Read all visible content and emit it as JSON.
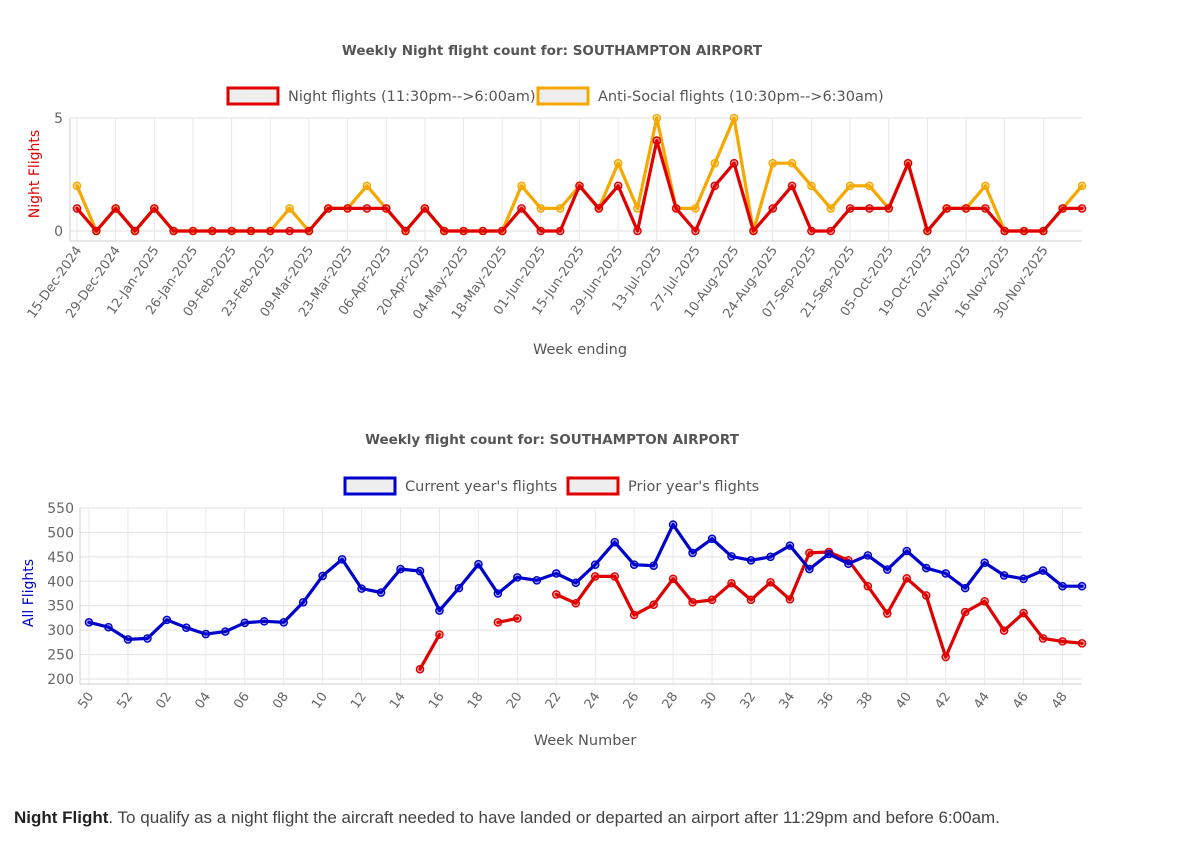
{
  "chart_data": [
    {
      "type": "line",
      "title": "Weekly Night flight count for: SOUTHAMPTON AIRPORT",
      "xlabel": "Week ending",
      "ylabel": "Night Flights",
      "ylim": [
        0,
        5
      ],
      "yticks": [
        0,
        5
      ],
      "grid": true,
      "legend_position": "top",
      "tick_labels": [
        "15-Dec-2024",
        "29-Dec-2024",
        "12-Jan-2025",
        "26-Jan-2025",
        "09-Feb-2025",
        "23-Feb-2025",
        "09-Mar-2025",
        "23-Mar-2025",
        "06-Apr-2025",
        "20-Apr-2025",
        "04-May-2025",
        "18-May-2025",
        "01-Jun-2025",
        "15-Jun-2025",
        "29-Jun-2025",
        "13-Jul-2025",
        "27-Jul-2025",
        "10-Aug-2025",
        "24-Aug-2025",
        "07-Sep-2025",
        "21-Sep-2025",
        "05-Oct-2025",
        "19-Oct-2025",
        "02-Nov-2025",
        "16-Nov-2025",
        "30-Nov-2025"
      ],
      "series": [
        {
          "name": "Night flights (11:30pm-->6:00am)",
          "color": "#e00000",
          "values": [
            1,
            0,
            1,
            0,
            1,
            0,
            0,
            0,
            0,
            0,
            0,
            0,
            0,
            1,
            1,
            1,
            1,
            0,
            1,
            0,
            0,
            0,
            0,
            1,
            0,
            0,
            2,
            1,
            2,
            0,
            4,
            1,
            0,
            2,
            3,
            0,
            1,
            2,
            0,
            0,
            1,
            1,
            1,
            3,
            0,
            1,
            1,
            1,
            0,
            0,
            0,
            1,
            1
          ]
        },
        {
          "name": "Anti-Social flights (10:30pm-->6:30am)",
          "color": "#f5a800",
          "values": [
            2,
            0,
            1,
            0,
            1,
            0,
            0,
            0,
            0,
            0,
            0,
            1,
            0,
            1,
            1,
            2,
            1,
            0,
            1,
            0,
            0,
            0,
            0,
            2,
            1,
            1,
            2,
            1,
            3,
            1,
            5,
            1,
            1,
            3,
            5,
            0,
            3,
            3,
            2,
            1,
            2,
            2,
            1,
            3,
            0,
            1,
            1,
            2,
            0,
            0,
            0,
            1,
            2
          ]
        }
      ]
    },
    {
      "type": "line",
      "title": "Weekly flight count for: SOUTHAMPTON AIRPORT",
      "xlabel": "Week Number",
      "ylabel": "All Flights",
      "ylim": [
        200,
        550
      ],
      "yticks": [
        200,
        250,
        300,
        350,
        400,
        450,
        500,
        550
      ],
      "grid": true,
      "legend_position": "top",
      "categories": [
        50,
        51,
        52,
        1,
        2,
        3,
        4,
        5,
        6,
        7,
        8,
        9,
        10,
        11,
        12,
        13,
        14,
        15,
        16,
        17,
        18,
        19,
        20,
        21,
        22,
        23,
        24,
        25,
        26,
        27,
        28,
        29,
        30,
        31,
        32,
        33,
        34,
        35,
        36,
        37,
        38,
        39,
        40,
        41,
        42,
        43,
        44,
        45,
        46,
        47,
        48,
        49
      ],
      "tick_labels": [
        "50",
        "52",
        "02",
        "04",
        "06",
        "08",
        "10",
        "12",
        "14",
        "16",
        "18",
        "20",
        "22",
        "24",
        "26",
        "28",
        "30",
        "32",
        "34",
        "36",
        "38",
        "40",
        "42",
        "44",
        "46",
        "48"
      ],
      "series": [
        {
          "name": "Current year's flights",
          "color": "#0000cc",
          "values": [
            316,
            306,
            281,
            283,
            321,
            305,
            292,
            297,
            315,
            318,
            316,
            357,
            411,
            445,
            385,
            377,
            425,
            421,
            340,
            386,
            435,
            375,
            408,
            402,
            416,
            397,
            434,
            480,
            434,
            432,
            516,
            458,
            487,
            451,
            443,
            450,
            473,
            425,
            456,
            436,
            453,
            424,
            462,
            427,
            416,
            386,
            438,
            412,
            405,
            422,
            390,
            390
          ]
        },
        {
          "name": "Prior year's flights",
          "color": "#e00000",
          "values": [
            null,
            null,
            null,
            null,
            null,
            null,
            null,
            null,
            null,
            null,
            null,
            null,
            null,
            null,
            null,
            null,
            null,
            220,
            291,
            null,
            null,
            316,
            324,
            null,
            373,
            355,
            410,
            410,
            331,
            352,
            405,
            357,
            362,
            396,
            362,
            398,
            363,
            458,
            460,
            443,
            390,
            334,
            406,
            371,
            245,
            337,
            359,
            299,
            335,
            283,
            277,
            273
          ]
        }
      ]
    }
  ],
  "footnote": {
    "term": "Night Flight",
    "text": ". To qualify as a night flight the aircraft needed to have landed or departed an airport after 11:29pm and before 6:00am."
  }
}
